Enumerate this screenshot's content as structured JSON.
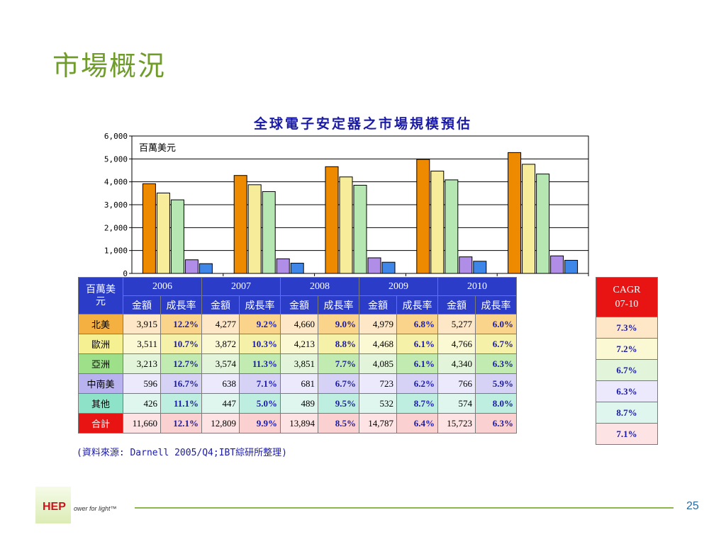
{
  "slide": {
    "title": "市場概況",
    "page_number": "25",
    "logo": "HEP",
    "tagline": "ower for light™",
    "source": "(資料來源: Darnell 2005/Q4;IBT綜研所整理)"
  },
  "table": {
    "corner": "百萬美元",
    "years": [
      "2006",
      "2007",
      "2008",
      "2009",
      "2010"
    ],
    "sub_amount": "金額",
    "sub_growth": "成長率",
    "rows": [
      {
        "label": "北美",
        "amounts": [
          "3,915",
          "4,277",
          "4,660",
          "4,979",
          "5,277"
        ],
        "growth": [
          "12.2%",
          "9.2%",
          "9.0%",
          "6.8%",
          "6.0%"
        ],
        "cagr": "7.3%",
        "label_bg": "#f5b042",
        "row_bg": "#fde7c6",
        "grw_bg": "#fad48a"
      },
      {
        "label": "歐洲",
        "amounts": [
          "3,511",
          "3,872",
          "4,213",
          "4,468",
          "4,766"
        ],
        "growth": [
          "10.7%",
          "10.3%",
          "8.8%",
          "6.1%",
          "6.7%"
        ],
        "cagr": "7.2%",
        "label_bg": "#f5f092",
        "row_bg": "#fbf8d4",
        "grw_bg": "#f6f1a8"
      },
      {
        "label": "亞洲",
        "amounts": [
          "3,213",
          "3,574",
          "3,851",
          "4,085",
          "4,340"
        ],
        "growth": [
          "12.7%",
          "11.3%",
          "7.7%",
          "6.1%",
          "6.3%"
        ],
        "cagr": "6.7%",
        "label_bg": "#9ee08a",
        "row_bg": "#e2f5da",
        "grw_bg": "#c2ebb2"
      },
      {
        "label": "中南美",
        "amounts": [
          "596",
          "638",
          "681",
          "723",
          "766"
        ],
        "growth": [
          "16.7%",
          "7.1%",
          "6.7%",
          "6.2%",
          "5.9%"
        ],
        "cagr": "6.3%",
        "label_bg": "#b8b2ee",
        "row_bg": "#ebe9fb",
        "grw_bg": "#d6d2f6"
      },
      {
        "label": "其他",
        "amounts": [
          "426",
          "447",
          "489",
          "532",
          "574"
        ],
        "growth": [
          "11.1%",
          "5.0%",
          "9.5%",
          "8.7%",
          "8.0%"
        ],
        "cagr": "8.7%",
        "label_bg": "#8ee2c8",
        "row_bg": "#dff6ee",
        "grw_bg": "#bdeedf"
      },
      {
        "label": "合計",
        "amounts": [
          "11,660",
          "12,809",
          "13,894",
          "14,787",
          "15,723"
        ],
        "growth": [
          "12.1%",
          "9.9%",
          "8.5%",
          "6.4%",
          "6.3%"
        ],
        "cagr": "7.1%",
        "label_bg": "#e81414",
        "label_color": "#ffffff",
        "row_bg": "#fde3e3",
        "grw_bg": "#fbd0d0"
      }
    ],
    "cagr_header_1": "CAGR",
    "cagr_header_2": "07-10"
  },
  "chart_data": {
    "type": "bar",
    "title": "全球電子安定器之市場規模預估",
    "unit_label": "百萬美元",
    "categories": [
      "2006",
      "2007",
      "2008",
      "2009",
      "2010"
    ],
    "series": [
      {
        "name": "北美",
        "values": [
          3915,
          4277,
          4660,
          4979,
          5277
        ],
        "color": "#ee8a00"
      },
      {
        "name": "歐洲",
        "values": [
          3511,
          3872,
          4213,
          4468,
          4766
        ],
        "color": "#f6ec9a"
      },
      {
        "name": "亞洲",
        "values": [
          3213,
          3574,
          3851,
          4085,
          4340
        ],
        "color": "#b6e6b2"
      },
      {
        "name": "中南美",
        "values": [
          596,
          638,
          681,
          723,
          766
        ],
        "color": "#b08ee8"
      },
      {
        "name": "其他",
        "values": [
          426,
          447,
          489,
          532,
          574
        ],
        "color": "#3e86e8"
      }
    ],
    "ylim": [
      0,
      6000
    ],
    "yticks": [
      "0",
      "1,000",
      "2,000",
      "3,000",
      "4,000",
      "5,000",
      "6,000"
    ],
    "grid": true
  }
}
